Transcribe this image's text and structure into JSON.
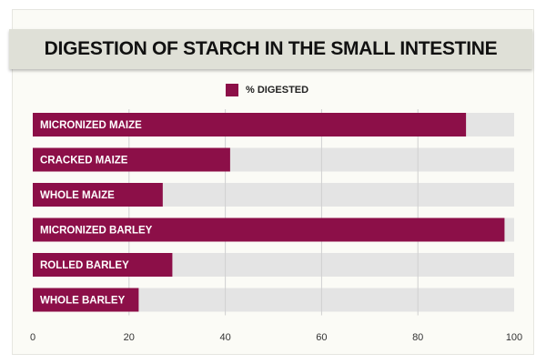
{
  "chart_data": {
    "type": "bar",
    "orientation": "horizontal",
    "title": "DIGESTION OF STARCH IN THE SMALL INTESTINE",
    "legend": {
      "label": "% DIGESTED",
      "placement": "top-center"
    },
    "categories": [
      "MICRONIZED MAIZE",
      "CRACKED MAIZE",
      "WHOLE MAIZE",
      "MICRONIZED BARLEY",
      "ROLLED BARLEY",
      "WHOLE BARLEY"
    ],
    "series": [
      {
        "name": "% DIGESTED",
        "values": [
          90,
          41,
          27,
          98,
          29,
          22
        ]
      }
    ],
    "xlim": [
      0,
      100
    ],
    "xticks": [
      0,
      20,
      40,
      60,
      80,
      100
    ],
    "grid": true,
    "colors": {
      "bar": "#8c0f48",
      "track": "#e4e4e4",
      "grid": "#d0d0d0"
    }
  }
}
